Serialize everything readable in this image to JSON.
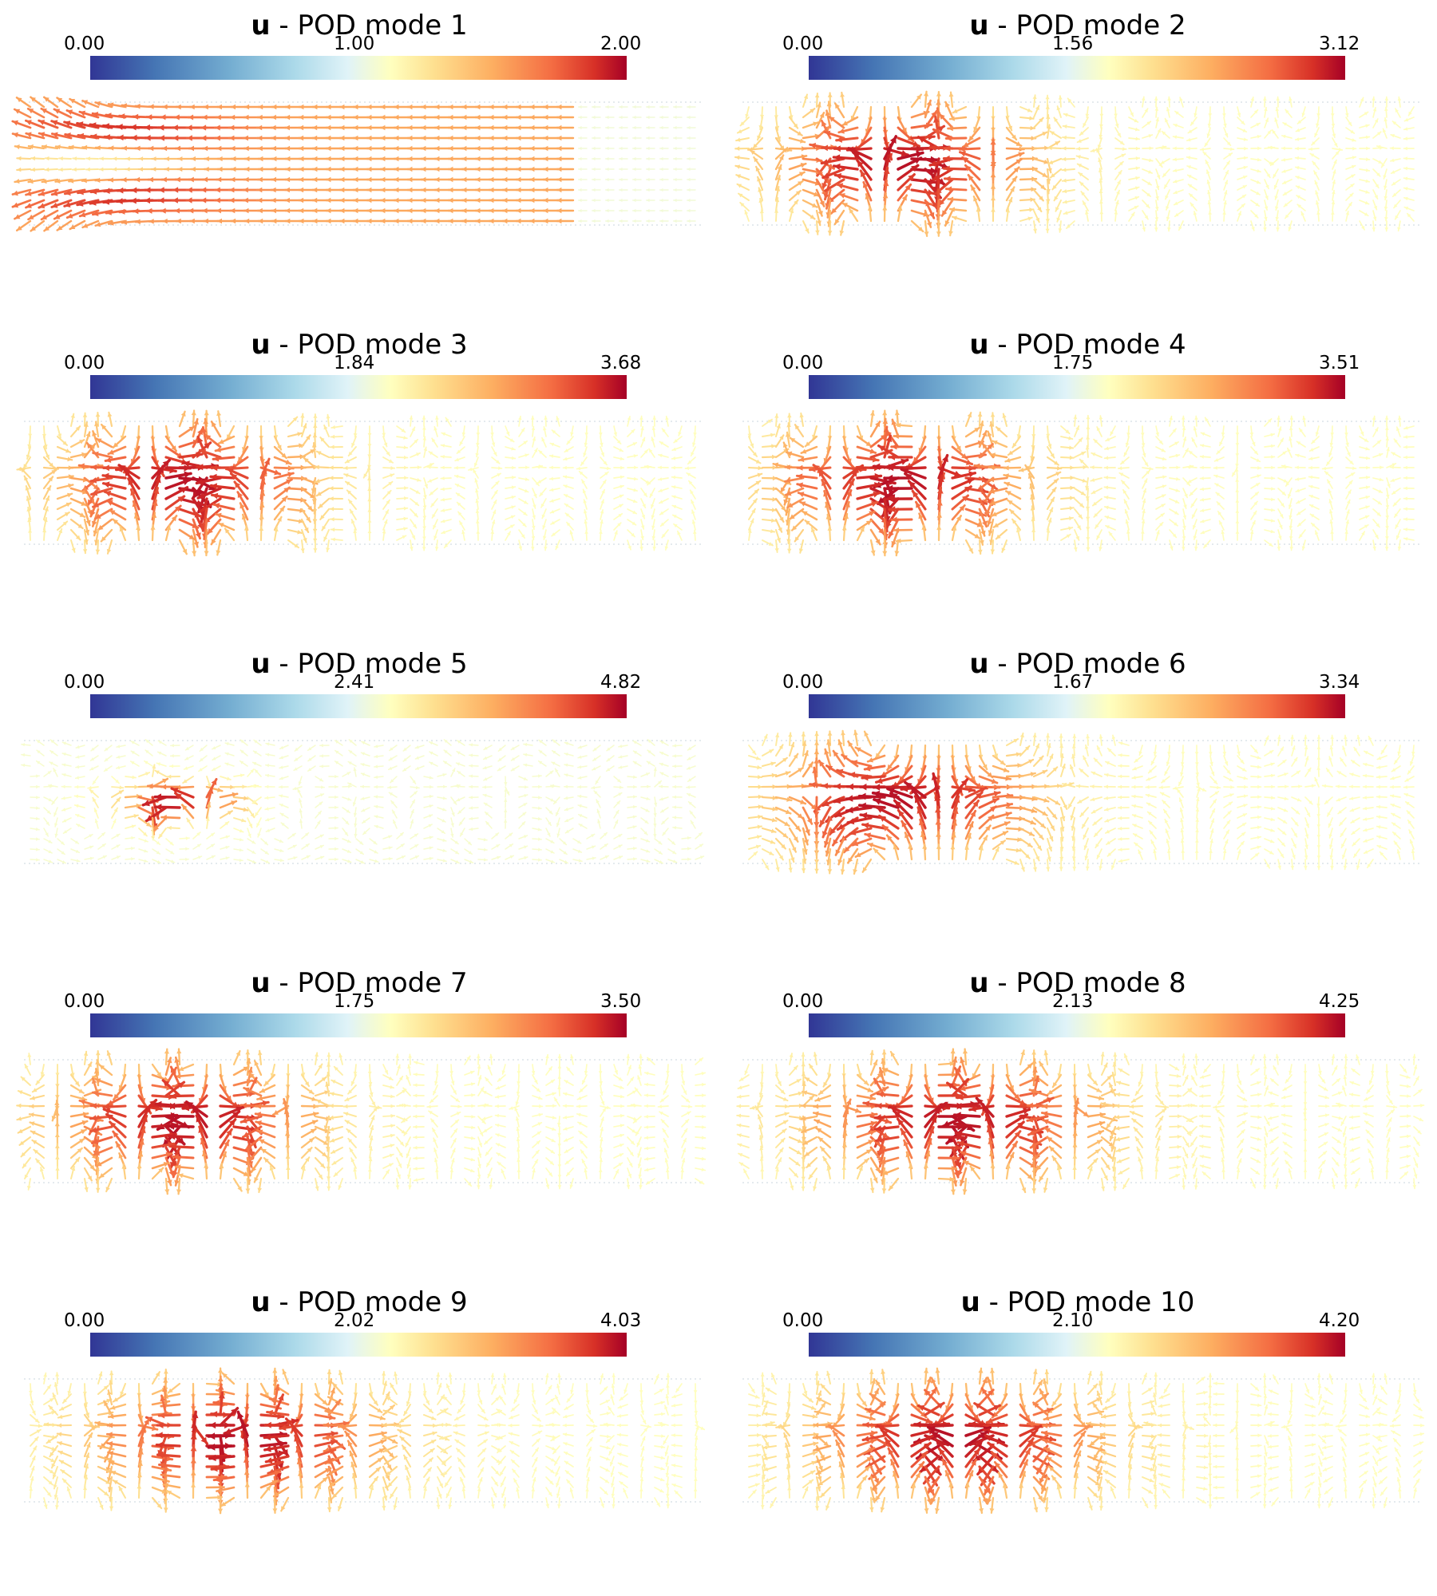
{
  "variable": "u",
  "panels": [
    {
      "title_suffix": " - POD mode 1",
      "bar_min": "0.00",
      "bar_mid": "1.00",
      "bar_max": "2.00"
    },
    {
      "title_suffix": " - POD mode 2",
      "bar_min": "0.00",
      "bar_mid": "1.56",
      "bar_max": "3.12"
    },
    {
      "title_suffix": " - POD mode 3",
      "bar_min": "0.00",
      "bar_mid": "1.84",
      "bar_max": "3.68"
    },
    {
      "title_suffix": " - POD mode 4",
      "bar_min": "0.00",
      "bar_mid": "1.75",
      "bar_max": "3.51"
    },
    {
      "title_suffix": " - POD mode 5",
      "bar_min": "0.00",
      "bar_mid": "2.41",
      "bar_max": "4.82"
    },
    {
      "title_suffix": " - POD mode 6",
      "bar_min": "0.00",
      "bar_mid": "1.67",
      "bar_max": "3.34"
    },
    {
      "title_suffix": " - POD mode 7",
      "bar_min": "0.00",
      "bar_mid": "1.75",
      "bar_max": "3.50"
    },
    {
      "title_suffix": " - POD mode 8",
      "bar_min": "0.00",
      "bar_mid": "2.13",
      "bar_max": "4.25"
    },
    {
      "title_suffix": " - POD mode 9",
      "bar_min": "0.00",
      "bar_mid": "2.02",
      "bar_max": "4.03"
    },
    {
      "title_suffix": " - POD mode 10",
      "bar_min": "0.00",
      "bar_mid": "2.10",
      "bar_max": "4.20"
    }
  ],
  "colormap": [
    "#313695",
    "#4575b4",
    "#74add1",
    "#abd9e9",
    "#e0f3f8",
    "#ffffbf",
    "#fee090",
    "#fdae61",
    "#f46d43",
    "#d73027",
    "#a50026"
  ]
}
